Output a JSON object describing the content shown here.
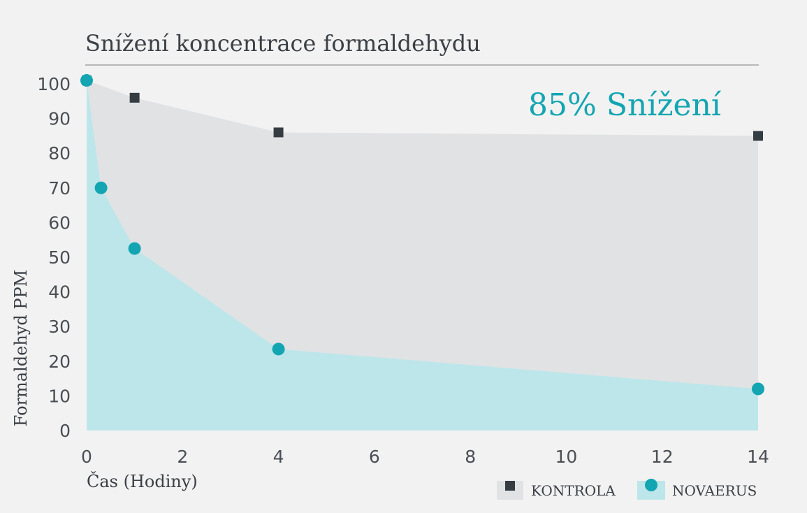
{
  "chart_data": {
    "type": "area",
    "title": "Snížení koncentrace formaldehydu",
    "annotation": "85% Snížení",
    "xlabel": "Čas (Hodiny)",
    "ylabel": "Formaldehyd PPM",
    "xlim": [
      0,
      14
    ],
    "ylim": [
      0,
      100
    ],
    "x_ticks": [
      "0",
      "2",
      "4",
      "6",
      "8",
      "10",
      "12",
      "14"
    ],
    "y_ticks": [
      "0",
      "10",
      "20",
      "30",
      "40",
      "50",
      "60",
      "70",
      "80",
      "90",
      "100"
    ],
    "grid": false,
    "legend_position": "bottom-right",
    "series": [
      {
        "name": "KONTROLA",
        "marker": "square",
        "color": "#353c42",
        "fill": "#e1e2e4",
        "x": [
          0,
          1,
          4,
          14
        ],
        "y": [
          101,
          96,
          86,
          85
        ]
      },
      {
        "name": "NOVAERUS",
        "marker": "circle",
        "color": "#13a5b1",
        "fill": "#bde6ea",
        "x": [
          0,
          0.3,
          1,
          4,
          14
        ],
        "y": [
          101,
          70,
          52.5,
          23.5,
          12
        ]
      }
    ],
    "colors": {
      "accent": "#13a5b1",
      "rule": "#a5a5a5"
    }
  }
}
